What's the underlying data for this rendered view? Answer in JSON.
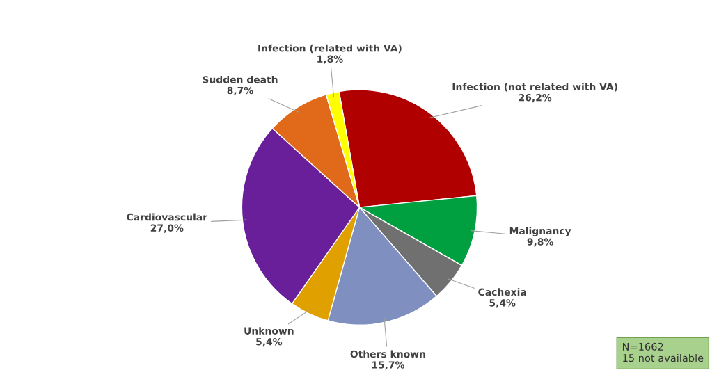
{
  "chart_data": {
    "type": "pie",
    "categories": [
      "Infection (not related with VA)",
      "Malignancy",
      "Cachexia",
      "Others known",
      "Unknown",
      "Cardiovascular",
      "Sudden death",
      "Infection (related with VA)"
    ],
    "values": [
      26.2,
      9.8,
      5.4,
      15.7,
      5.4,
      27.0,
      8.7,
      1.8
    ],
    "value_labels": [
      "26,2%",
      "9,8%",
      "5,4%",
      "15,7%",
      "5,4%",
      "27,0%",
      "8,7%",
      "1,8%"
    ],
    "colors": [
      "#b00000",
      "#00a040",
      "#707070",
      "#7f8fc0",
      "#e0a000",
      "#6a1f9a",
      "#e06a1a",
      "#ffff00"
    ],
    "annotations": [
      "N=1662\n15 not available"
    ]
  }
}
